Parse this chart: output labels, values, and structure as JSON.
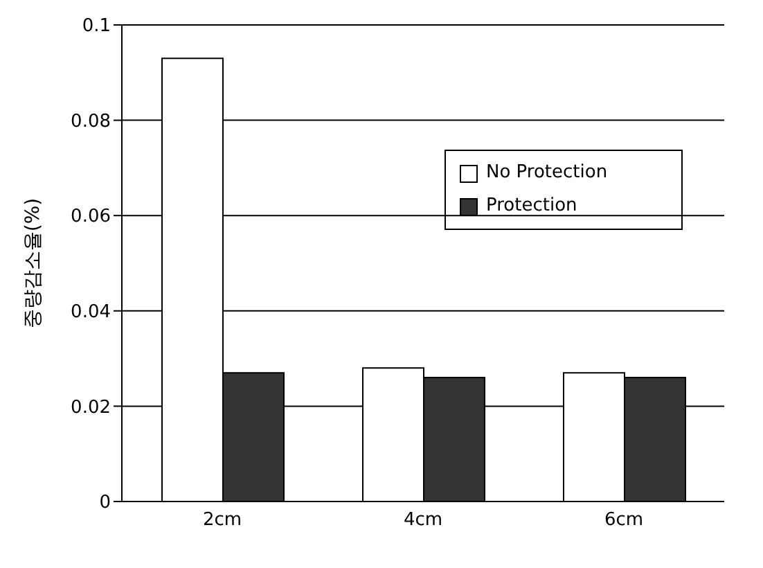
{
  "chart_data": {
    "type": "bar",
    "ylabel": "중량감소율(%)",
    "categories": [
      "2cm",
      "4cm",
      "6cm"
    ],
    "series": [
      {
        "name": "No Protection",
        "color": "#ffffff",
        "values": [
          0.093,
          0.028,
          0.027
        ]
      },
      {
        "name": "Protection",
        "color": "#333333",
        "values": [
          0.027,
          0.026,
          0.026
        ]
      }
    ],
    "ylim": [
      0,
      0.1
    ],
    "yticks": [
      0,
      0.02,
      0.04,
      0.06,
      0.08,
      0.1
    ],
    "grid": "y",
    "legend": "top right"
  }
}
